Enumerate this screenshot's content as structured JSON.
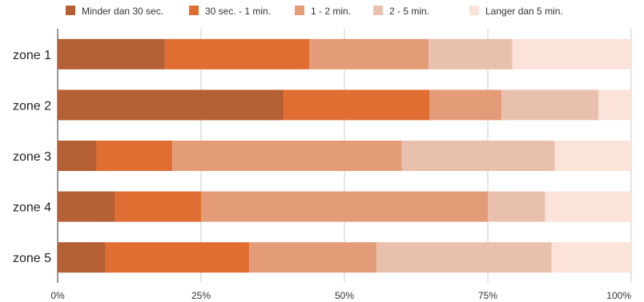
{
  "chart_data": {
    "type": "bar",
    "orientation": "horizontal",
    "stacked": "100%",
    "categories": [
      "zone 1",
      "zone 2",
      "zone 3",
      "zone 4",
      "zone 5"
    ],
    "series": [
      {
        "name": "Minder dan 30 sec.",
        "color": "#b45f34",
        "values": [
          18.7,
          39.4,
          6.7,
          10.0,
          8.3
        ]
      },
      {
        "name": "30 sec. - 1 min.",
        "color": "#e06d32",
        "values": [
          25.2,
          25.4,
          13.3,
          15.0,
          25.1
        ]
      },
      {
        "name": "1 - 2 min.",
        "color": "#e39c77",
        "values": [
          20.8,
          12.6,
          40.0,
          50.0,
          22.2
        ]
      },
      {
        "name": "2 - 5 min.",
        "color": "#e9c0ad",
        "values": [
          14.6,
          16.9,
          26.7,
          10.0,
          30.5
        ]
      },
      {
        "name": "Langer dan 5 min.",
        "color": "#fbe3da",
        "values": [
          20.7,
          5.7,
          13.3,
          15.0,
          13.9
        ]
      }
    ],
    "xticks": [
      "0%",
      "25%",
      "50%",
      "75%",
      "100%"
    ],
    "xlim": [
      0,
      100
    ],
    "grid": true,
    "legend": "top-left"
  }
}
